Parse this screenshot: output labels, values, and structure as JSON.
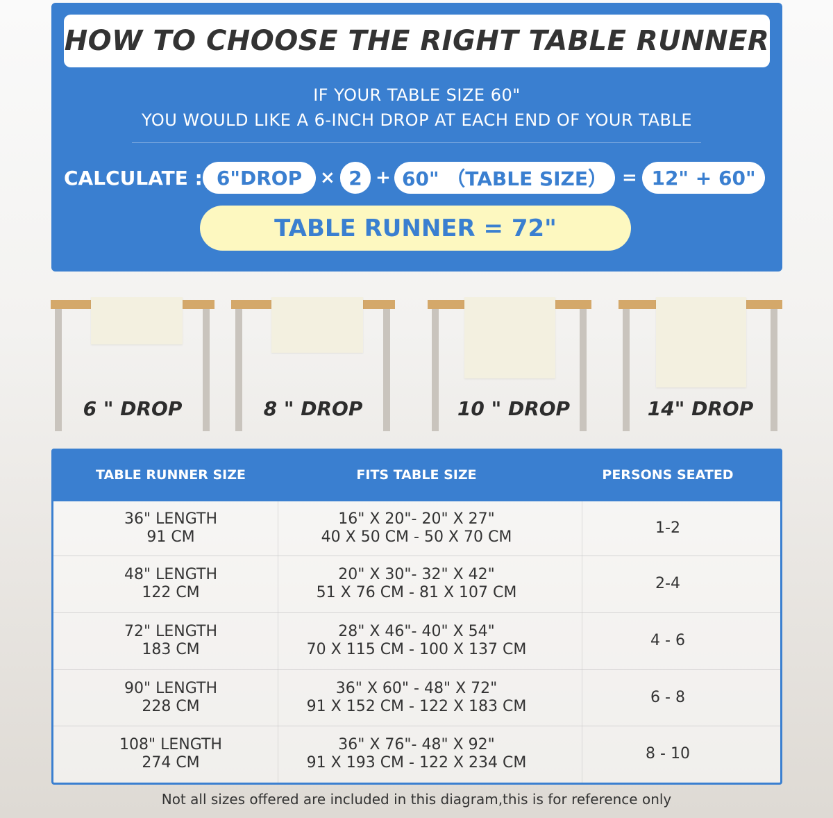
{
  "header": {
    "title": "HOW TO CHOOSE THE RIGHT TABLE RUNNER",
    "line1": "IF YOUR TABLE SIZE 60\"",
    "line2": "YOU WOULD LIKE A 6-INCH DROP AT EACH END OF YOUR TABLE"
  },
  "calculation": {
    "label": "CALCULATE :",
    "drop": "6\"DROP",
    "times": "×",
    "multiplier": "2",
    "plus": "+",
    "table_size": "60\" （TABLE SIZE）",
    "equals": "=",
    "sum": "12\" + 60\"",
    "result": "TABLE RUNNER = 72\""
  },
  "colors": {
    "accent": "#3a7fd0",
    "highlight": "#fdf8c0",
    "tabletop": "#d4a86a",
    "runner": "#f3f0e0"
  },
  "drops": [
    {
      "label": "6 \" DROP"
    },
    {
      "label": "8 \" DROP"
    },
    {
      "label": "10 \" DROP"
    },
    {
      "label": "14\" DROP"
    }
  ],
  "table": {
    "headers": [
      "TABLE RUNNER SIZE",
      "FITS TABLE SIZE",
      "PERSONS SEATED"
    ],
    "rows": [
      {
        "size": [
          "36\" LENGTH",
          "91 CM"
        ],
        "fits": [
          "16\" X 20\"- 20\" X 27\"",
          "40 X 50 CM - 50 X 70 CM"
        ],
        "persons": "1-2"
      },
      {
        "size": [
          "48\" LENGTH",
          "122 CM"
        ],
        "fits": [
          "20\" X 30\"- 32\" X 42\"",
          "51 X 76 CM - 81 X 107 CM"
        ],
        "persons": "2-4"
      },
      {
        "size": [
          "72\" LENGTH",
          "183 CM"
        ],
        "fits": [
          "28\" X 46\"- 40\" X 54\"",
          "70 X 115 CM - 100 X 137 CM"
        ],
        "persons": "4 - 6"
      },
      {
        "size": [
          "90\" LENGTH",
          "228 CM"
        ],
        "fits": [
          "36\" X 60\" - 48\" X 72\"",
          "91 X 152 CM - 122 X 183 CM"
        ],
        "persons": "6 - 8"
      },
      {
        "size": [
          "108\" LENGTH",
          "274 CM"
        ],
        "fits": [
          "36\" X 76\"- 48\" X 92\"",
          "91 X 193 CM - 122 X 234 CM"
        ],
        "persons": "8 - 10"
      }
    ]
  },
  "footer": "Not all sizes offered are included in this diagram,this is for reference only"
}
